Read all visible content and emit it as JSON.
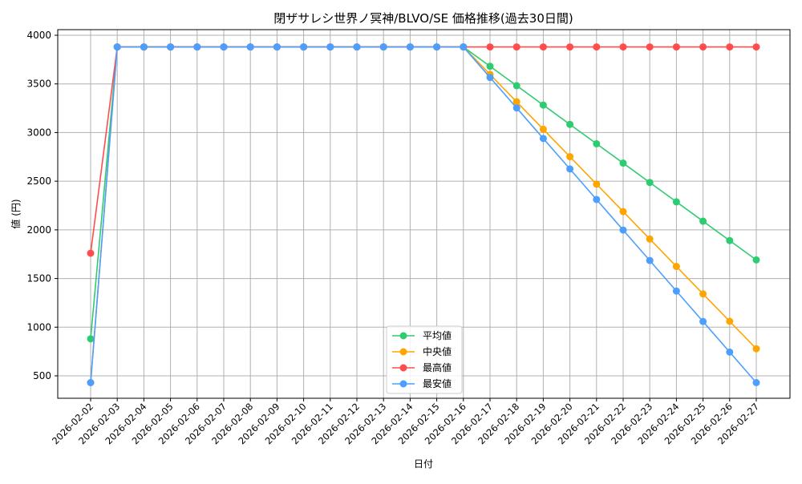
{
  "chart_data": {
    "type": "line",
    "title": "閉ザサレシ世界ノ冥神/BLVO/SE 価格推移(過去30日間)",
    "xlabel": "日付",
    "ylabel": "値 (円)",
    "ylim": [
      250,
      4000
    ],
    "yticks": [
      500,
      1000,
      1500,
      2000,
      2500,
      3000,
      3500,
      4000
    ],
    "grid": true,
    "legend_position": "bottom-center",
    "x": [
      "2026-02-02",
      "2026-02-03",
      "2026-02-04",
      "2026-02-05",
      "2026-02-06",
      "2026-02-07",
      "2026-02-08",
      "2026-02-09",
      "2026-02-10",
      "2026-02-11",
      "2026-02-12",
      "2026-02-13",
      "2026-02-14",
      "2026-02-15",
      "2026-02-16",
      "2026-02-17",
      "2026-02-18",
      "2026-02-19",
      "2026-02-20",
      "2026-02-21",
      "2026-02-22",
      "2026-02-23",
      "2026-02-24",
      "2026-02-25",
      "2026-02-26",
      "2026-02-27"
    ],
    "series": [
      {
        "name": "平均値",
        "color": "#2ecc71",
        "values": [
          880,
          3880,
          3880,
          3880,
          3880,
          3880,
          3880,
          3880,
          3880,
          3880,
          3880,
          3880,
          3880,
          3880,
          3880,
          3681,
          3482,
          3283,
          3084,
          2885,
          2686,
          2487,
          2288,
          2089,
          1890,
          1691
        ]
      },
      {
        "name": "中央値",
        "color": "#ffa500",
        "values": [
          430,
          3880,
          3880,
          3880,
          3880,
          3880,
          3880,
          3880,
          3880,
          3880,
          3880,
          3880,
          3880,
          3880,
          3880,
          3598,
          3316,
          3034,
          2752,
          2470,
          2188,
          1906,
          1624,
          1342,
          1060,
          778
        ]
      },
      {
        "name": "最高値",
        "color": "#ff4d4d",
        "values": [
          1760,
          3880,
          3880,
          3880,
          3880,
          3880,
          3880,
          3880,
          3880,
          3880,
          3880,
          3880,
          3880,
          3880,
          3880,
          3880,
          3880,
          3880,
          3880,
          3880,
          3880,
          3880,
          3880,
          3880,
          3880,
          3880
        ]
      },
      {
        "name": "最安値",
        "color": "#4d9fff",
        "values": [
          430,
          3880,
          3880,
          3880,
          3880,
          3880,
          3880,
          3880,
          3880,
          3880,
          3880,
          3880,
          3880,
          3880,
          3880,
          3566,
          3253,
          2939,
          2626,
          2312,
          1998,
          1685,
          1371,
          1058,
          744,
          430
        ]
      }
    ]
  }
}
